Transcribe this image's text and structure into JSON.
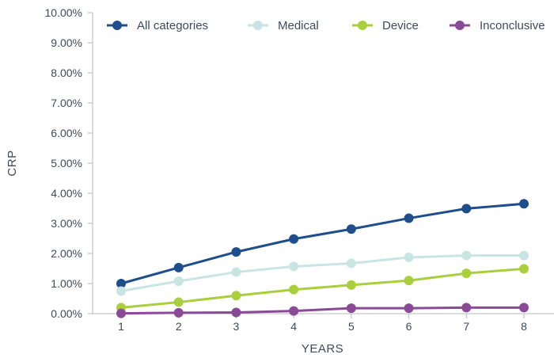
{
  "chart_data": {
    "type": "line",
    "title": "",
    "xlabel": "YEARS",
    "ylabel": "CRP",
    "x": [
      1,
      2,
      3,
      4,
      5,
      6,
      7,
      8
    ],
    "ylim": [
      0,
      10
    ],
    "yticks": [
      0,
      1,
      2,
      3,
      4,
      5,
      6,
      7,
      8,
      9,
      10
    ],
    "ytick_labels": [
      "0.00%",
      "1.00%",
      "2.00%",
      "3.00%",
      "4.00%",
      "5.00%",
      "6.00%",
      "7.00%",
      "8.00%",
      "9.00%",
      "10.00%"
    ],
    "xtick_labels": [
      "1",
      "2",
      "3",
      "4",
      "5",
      "6",
      "7",
      "8"
    ],
    "grid": false,
    "legend_position": "top",
    "series": [
      {
        "name": "All categories",
        "color": "#1f4e8c",
        "values": [
          1.0,
          1.53,
          2.05,
          2.48,
          2.81,
          3.17,
          3.49,
          3.65
        ]
      },
      {
        "name": "Medical",
        "color": "#c9e5e3",
        "values": [
          0.75,
          1.08,
          1.38,
          1.57,
          1.67,
          1.87,
          1.93,
          1.93
        ]
      },
      {
        "name": "Device",
        "color": "#a9cf3c",
        "values": [
          0.2,
          0.38,
          0.6,
          0.8,
          0.95,
          1.1,
          1.34,
          1.49
        ]
      },
      {
        "name": "Inconclusive",
        "color": "#8b4a97",
        "values": [
          0.01,
          0.03,
          0.04,
          0.09,
          0.18,
          0.18,
          0.2,
          0.2
        ]
      }
    ]
  }
}
